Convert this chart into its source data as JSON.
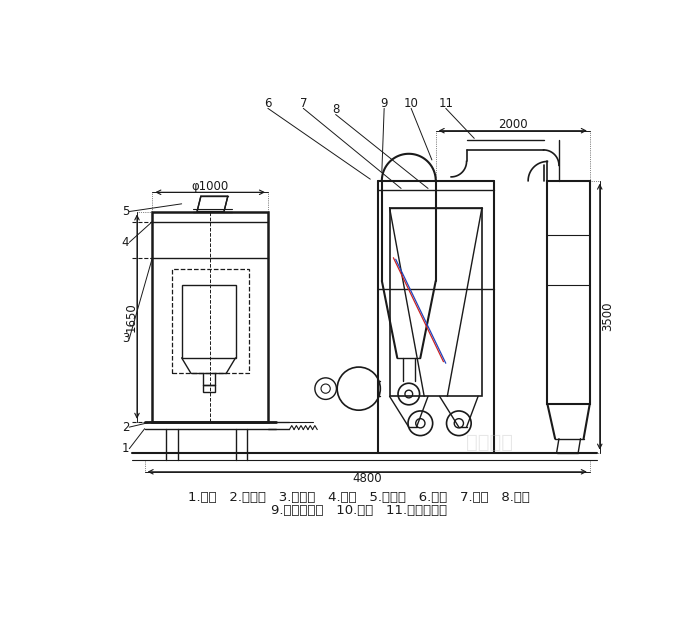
{
  "bg_color": "#ffffff",
  "line_color": "#1a1a1a",
  "legend_line1": "1.底座   2.回风道   3.激振器   4.筛网   5.进料斗   6.风机   7.绞龙   8.料仓",
  "legend_line2": "9.旋风分离器   10.支架   11.布袋除尘器",
  "dim_phi1000": "φ1000",
  "dim_1650": "1650",
  "dim_2000": "2000",
  "dim_3500": "3500",
  "dim_4800": "4800"
}
